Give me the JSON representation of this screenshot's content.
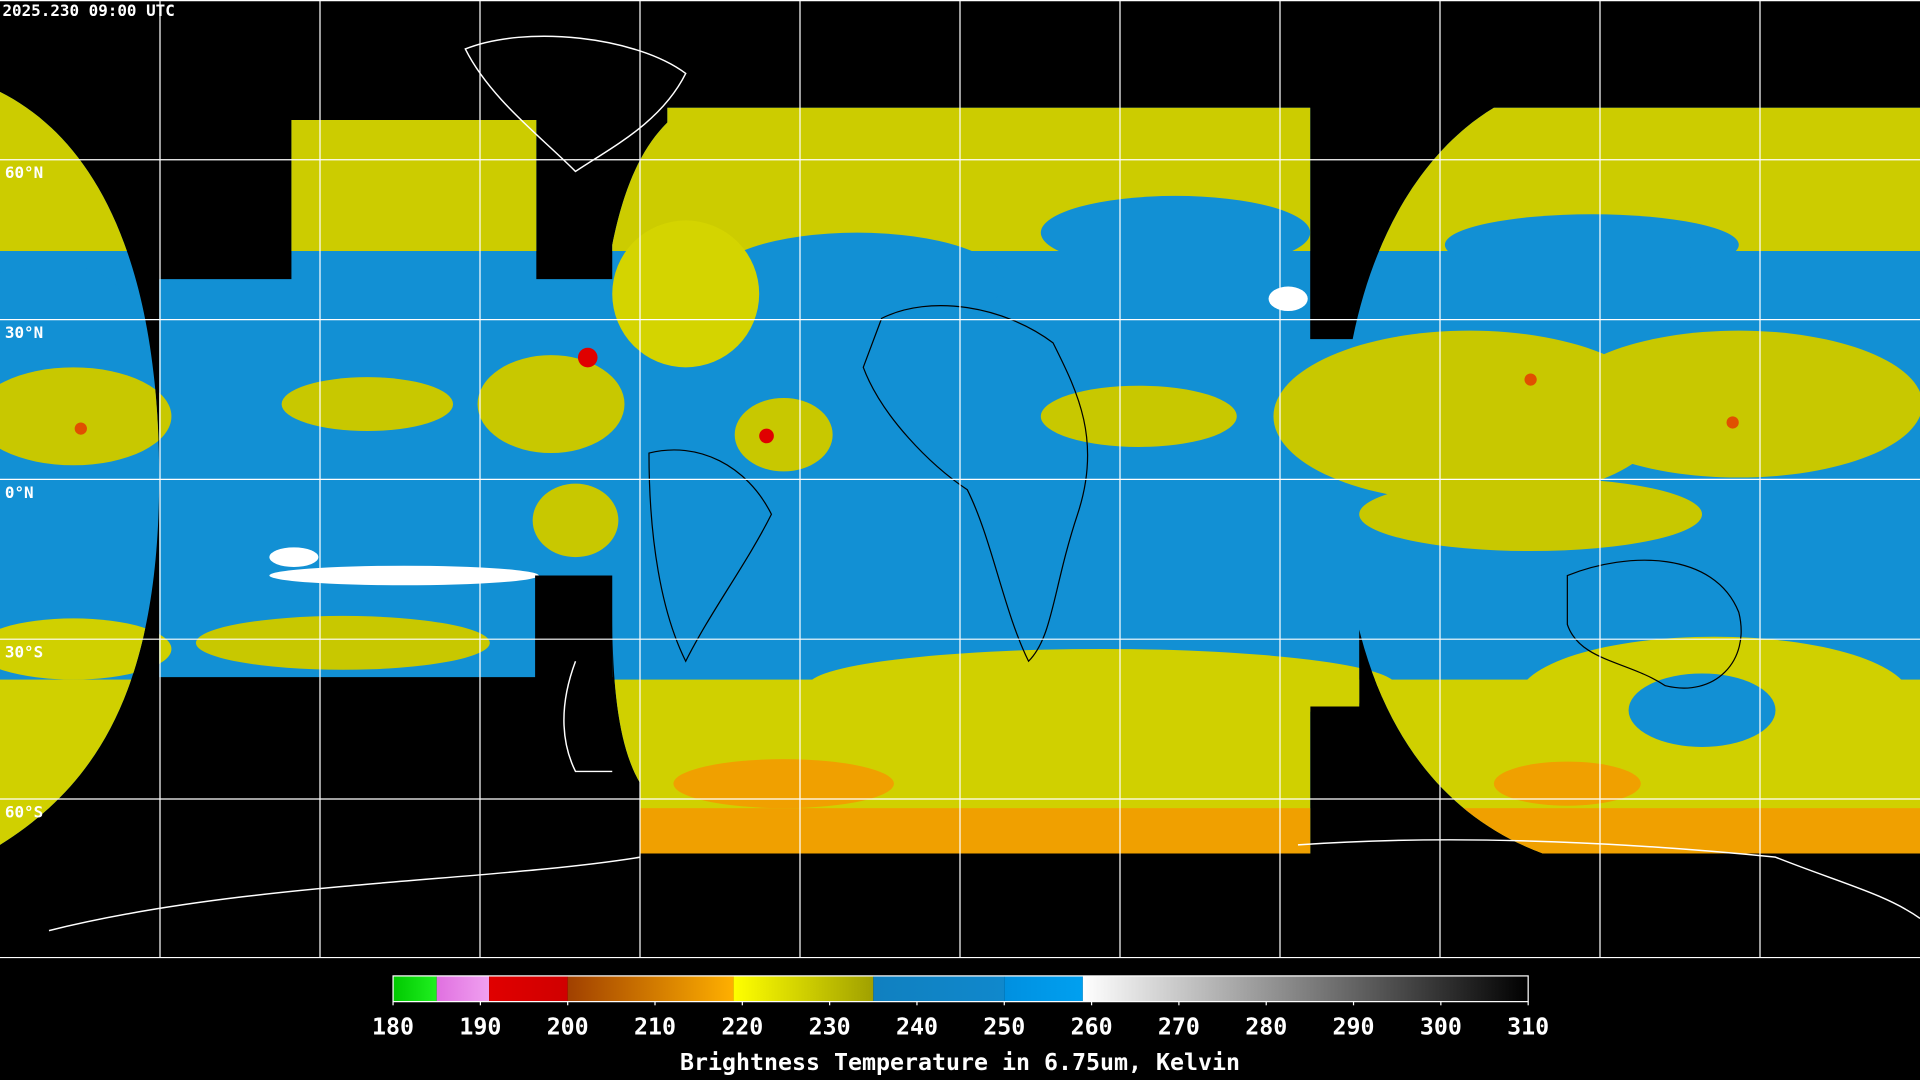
{
  "header": {
    "timestamp": "2025.230 09:00 UTC"
  },
  "map": {
    "lat_labels": [
      "60°N",
      "30°N",
      "0°N",
      "30°S",
      "60°S"
    ]
  },
  "colorbar": {
    "range": [
      180,
      310
    ],
    "ticks": [
      180,
      190,
      200,
      210,
      220,
      230,
      240,
      250,
      260,
      270,
      280,
      290,
      300,
      310
    ],
    "label": "Brightness Temperature in 6.75um, Kelvin",
    "segments": [
      {
        "from": 180,
        "to": 185,
        "colors": [
          "#00c800",
          "#20f020"
        ]
      },
      {
        "from": 185,
        "to": 191,
        "colors": [
          "#e070e0",
          "#f0a0f0"
        ]
      },
      {
        "from": 191,
        "to": 200,
        "colors": [
          "#e00000",
          "#d00000"
        ]
      },
      {
        "from": 200,
        "to": 219,
        "colors": [
          "#a04000",
          "#ffb000"
        ]
      },
      {
        "from": 219,
        "to": 235,
        "colors": [
          "#ffff00",
          "#a0a000"
        ]
      },
      {
        "from": 235,
        "to": 250,
        "colors": [
          "#1080c0",
          "#1088cc"
        ]
      },
      {
        "from": 250,
        "to": 259,
        "colors": [
          "#0090e0",
          "#00a0f0"
        ]
      },
      {
        "from": 259,
        "to": 310,
        "colors": [
          "#ffffff",
          "#000000"
        ]
      }
    ]
  }
}
